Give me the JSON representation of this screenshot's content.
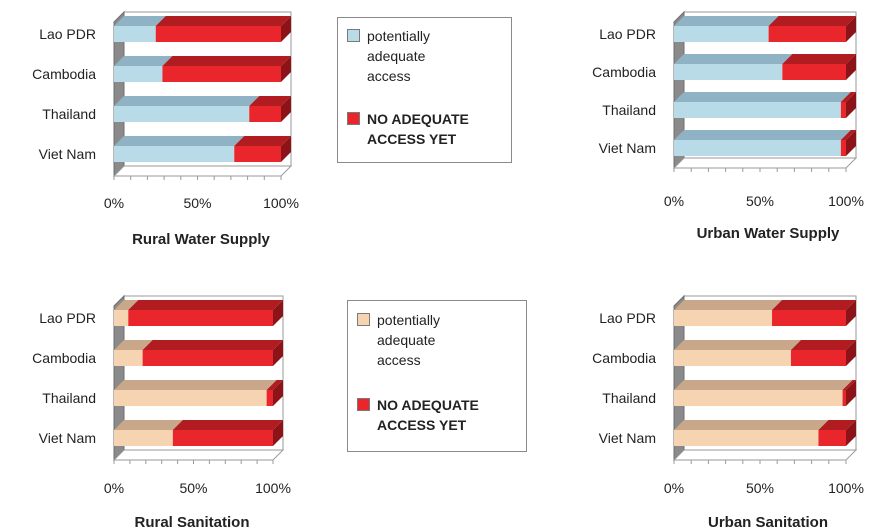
{
  "colors": {
    "red": "#e8262b",
    "red_top": "#b01c20",
    "red_side": "#8c1418",
    "water": "#b9dbe8",
    "water_top": "#8fb3c4",
    "sanitation": "#f6d3b1",
    "sanitation_top": "#c8a78a"
  },
  "legends": [
    {
      "items": [
        {
          "label": "potentially\nadequate\naccess",
          "color": "#b9dbe8"
        },
        {
          "label": "NO ADEQUATE\nACCESS YET",
          "color": "#e8262b"
        }
      ]
    },
    {
      "items": [
        {
          "label": "potentially\nadequate\naccess",
          "color": "#f6d3b1"
        },
        {
          "label": "NO ADEQUATE\nACCESS YET",
          "color": "#e8262b"
        }
      ]
    }
  ],
  "chart_data": [
    {
      "type": "bar",
      "orientation": "horizontal",
      "stacked": true,
      "title": "Rural Water Supply",
      "categories": [
        "Lao PDR",
        "Cambodia",
        "Thailand",
        "Viet Nam"
      ],
      "series": [
        {
          "name": "potentially adequate access",
          "values": [
            25,
            29,
            81,
            72
          ]
        },
        {
          "name": "NO ADEQUATE ACCESS YET",
          "values": [
            75,
            71,
            19,
            28
          ]
        }
      ],
      "x_ticks": [
        "0%",
        "50%",
        "100%"
      ],
      "xlim": [
        0,
        100
      ]
    },
    {
      "type": "bar",
      "orientation": "horizontal",
      "stacked": true,
      "title": "Urban Water Supply",
      "categories": [
        "Lao PDR",
        "Cambodia",
        "Thailand",
        "Viet Nam"
      ],
      "series": [
        {
          "name": "potentially adequate access",
          "values": [
            55,
            63,
            97,
            97
          ]
        },
        {
          "name": "NO ADEQUATE ACCESS YET",
          "values": [
            45,
            37,
            3,
            3
          ]
        }
      ],
      "x_ticks": [
        "0%",
        "50%",
        "100%"
      ],
      "xlim": [
        0,
        100
      ]
    },
    {
      "type": "bar",
      "orientation": "horizontal",
      "stacked": true,
      "title": "Rural Sanitation",
      "categories": [
        "Lao PDR",
        "Cambodia",
        "Thailand",
        "Viet Nam"
      ],
      "series": [
        {
          "name": "potentially adequate access",
          "values": [
            9,
            18,
            96,
            37
          ]
        },
        {
          "name": "NO ADEQUATE ACCESS YET",
          "values": [
            91,
            82,
            4,
            63
          ]
        }
      ],
      "x_ticks": [
        "0%",
        "50%",
        "100%"
      ],
      "xlim": [
        0,
        100
      ]
    },
    {
      "type": "bar",
      "orientation": "horizontal",
      "stacked": true,
      "title": "Urban Sanitation",
      "categories": [
        "Lao PDR",
        "Cambodia",
        "Thailand",
        "Viet Nam"
      ],
      "series": [
        {
          "name": "potentially adequate access",
          "values": [
            57,
            68,
            98,
            84
          ]
        },
        {
          "name": "NO ADEQUATE ACCESS YET",
          "values": [
            43,
            32,
            2,
            16
          ]
        }
      ],
      "x_ticks": [
        "0%",
        "50%",
        "100%"
      ],
      "xlim": [
        0,
        100
      ]
    }
  ]
}
